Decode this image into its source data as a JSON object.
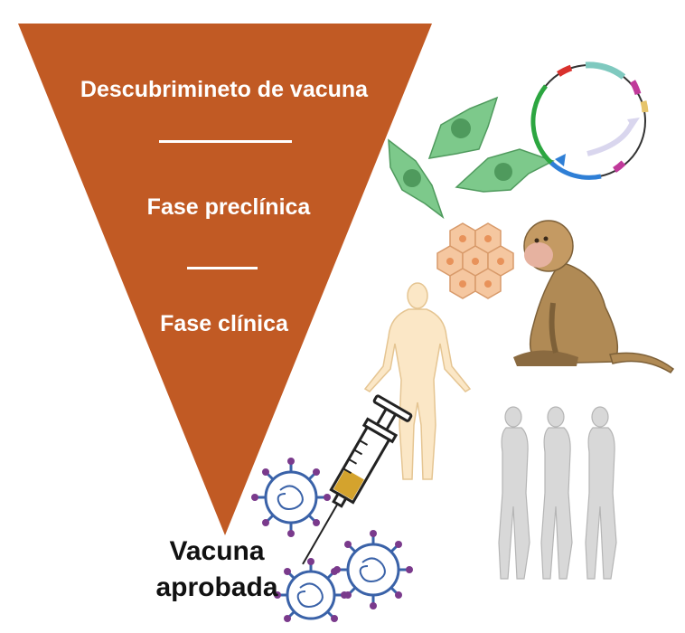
{
  "funnel": {
    "stage_discovery": "Descubrimineto de vacuna",
    "stage_preclinical": "Fase preclínica",
    "stage_clinical": "Fase clínica",
    "color": "#c15a24"
  },
  "result": {
    "line1": "Vacuna",
    "line2": "aprobada"
  },
  "icons": [
    "cell-icon",
    "plasmid-icon",
    "cell-cluster-icon",
    "monkey-icon",
    "human-figure-icon",
    "human-group-icon",
    "syringe-icon",
    "virus-icon"
  ]
}
